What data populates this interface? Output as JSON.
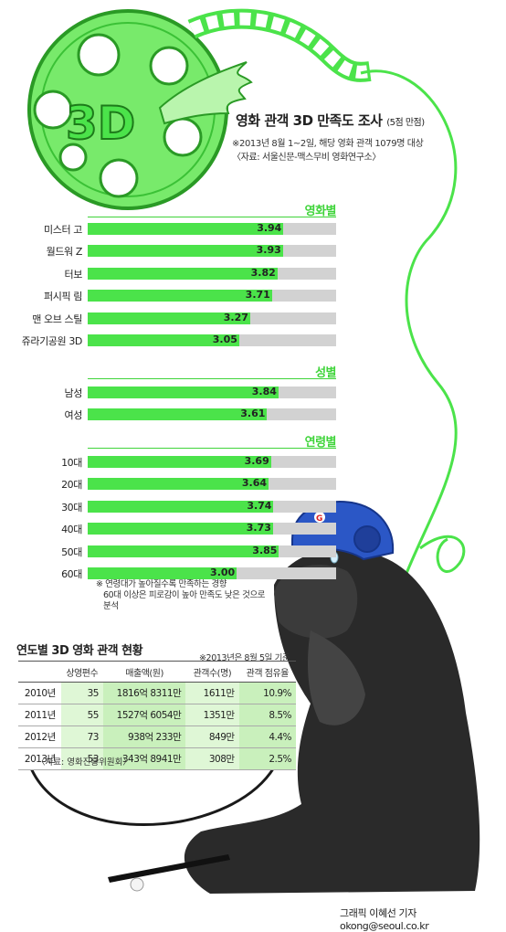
{
  "title": "영화 관객 3D 만족도 조사",
  "title_note": "(5점 만점)",
  "survey_note": "※2013년 8월 1~2일, 해당 영화 관객 1079명 대상",
  "source_note": "〈자료: 서울신문-맥스무비 영화연구소〉",
  "logo_text": "3D",
  "chart_data": {
    "type": "bar",
    "orientation": "horizontal",
    "title": "영화 관객 3D 만족도 조사",
    "xlim": [
      0,
      5
    ],
    "groups": [
      {
        "name": "영화별",
        "categories": [
          "미스터 고",
          "월드워 Z",
          "터보",
          "퍼시픽 림",
          "맨 오브 스틸",
          "쥬라기공원 3D"
        ],
        "values": [
          3.94,
          3.93,
          3.82,
          3.71,
          3.27,
          3.05
        ],
        "labels": [
          "3.94",
          "3.93",
          "3.82",
          "3.71",
          "3.27",
          "3.05"
        ]
      },
      {
        "name": "성별",
        "categories": [
          "남성",
          "여성"
        ],
        "values": [
          3.84,
          3.61
        ],
        "labels": [
          "3.84",
          "3.61"
        ]
      },
      {
        "name": "연령별",
        "categories": [
          "10대",
          "20대",
          "30대",
          "40대",
          "50대",
          "60대"
        ],
        "values": [
          3.69,
          3.64,
          3.74,
          3.73,
          3.85,
          3.0
        ],
        "labels": [
          "3.69",
          "3.64",
          "3.74",
          "3.73",
          "3.85",
          "3.00"
        ]
      }
    ]
  },
  "footnote": [
    "※ 연령대가 높아질수록 만족하는 경향",
    "60대 이상은 피로감이 높아 만족도 낮은 것으로",
    "분석"
  ],
  "table": {
    "title": "연도별 3D 영화 관객 현황",
    "note": "※2013년은 8월 5일 기준",
    "headers": [
      "",
      "상영편수",
      "매출액(원)",
      "관객수(명)",
      "관객 점유율"
    ],
    "rows": [
      [
        "2010년",
        "35",
        "1816억 8311만",
        "1611만",
        "10.9%"
      ],
      [
        "2011년",
        "55",
        "1527억 6054만",
        "1351만",
        "8.5%"
      ],
      [
        "2012년",
        "73",
        "938억 233만",
        "849만",
        "4.4%"
      ],
      [
        "2013년",
        "53",
        "343억 8941만",
        "308만",
        "2.5%"
      ]
    ],
    "source": "〈자료: 영화진흥위원회〉"
  },
  "credit": "그래픽 이혜선 기자 okong@seoul.co.kr",
  "colors": {
    "accent": "#4be34a",
    "accent_dark": "#3fd43a",
    "track": "#d2d2d2",
    "table_fill": "#dff7d6",
    "helmet": "#2b57c6",
    "gorilla": "#2a2a2a"
  }
}
